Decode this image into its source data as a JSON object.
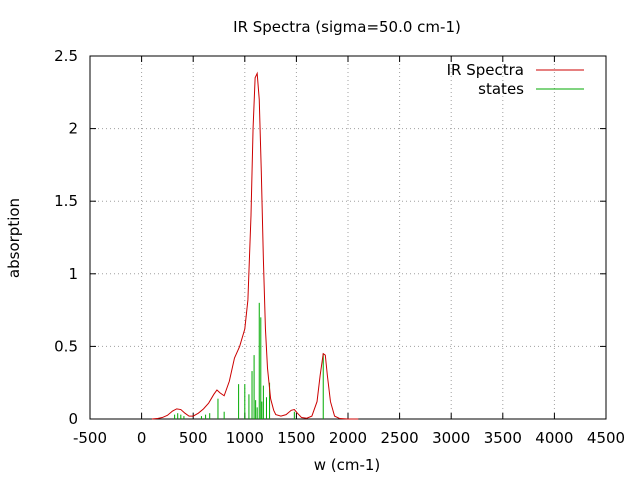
{
  "chart_data": {
    "type": "line",
    "title": "IR Spectra (sigma=50.0 cm-1)",
    "xlabel": "w (cm-1)",
    "ylabel": "absorption",
    "xlim": [
      -500,
      4500
    ],
    "ylim": [
      0,
      2.5
    ],
    "x_ticks": [
      -500,
      0,
      500,
      1000,
      1500,
      2000,
      2500,
      3000,
      3500,
      4000,
      4500
    ],
    "x_tick_labels": [
      "-500",
      "0",
      "500",
      "1000",
      "1500",
      "2000",
      "2500",
      "3000",
      "3500",
      "4000",
      "4500"
    ],
    "y_ticks": [
      0,
      0.5,
      1,
      1.5,
      2,
      2.5
    ],
    "y_tick_labels": [
      "0",
      "0.5",
      "1",
      "1.5",
      "2",
      "2.5"
    ],
    "grid": true,
    "legend_position": "top-right",
    "series": [
      {
        "name": "IR Spectra",
        "color": "#cc0000",
        "kind": "line",
        "x": [
          100,
          150,
          200,
          250,
          300,
          340,
          380,
          420,
          460,
          500,
          550,
          600,
          650,
          700,
          730,
          760,
          800,
          850,
          900,
          950,
          1000,
          1030,
          1060,
          1080,
          1100,
          1120,
          1140,
          1160,
          1180,
          1200,
          1220,
          1250,
          1280,
          1300,
          1350,
          1400,
          1450,
          1480,
          1510,
          1550,
          1600,
          1650,
          1700,
          1730,
          1760,
          1780,
          1800,
          1830,
          1870,
          1920,
          2000,
          2100
        ],
        "y": [
          0.0,
          0.003,
          0.01,
          0.025,
          0.055,
          0.07,
          0.065,
          0.04,
          0.02,
          0.02,
          0.04,
          0.07,
          0.11,
          0.17,
          0.2,
          0.18,
          0.16,
          0.26,
          0.42,
          0.5,
          0.62,
          0.82,
          1.4,
          2.0,
          2.35,
          2.38,
          2.2,
          1.7,
          1.1,
          0.62,
          0.35,
          0.14,
          0.06,
          0.03,
          0.02,
          0.03,
          0.06,
          0.065,
          0.04,
          0.01,
          0.005,
          0.02,
          0.12,
          0.3,
          0.45,
          0.44,
          0.3,
          0.12,
          0.02,
          0.003,
          0.0,
          0.0
        ]
      },
      {
        "name": "states",
        "color": "#00aa00",
        "kind": "sticks",
        "x": [
          320,
          350,
          380,
          410,
          580,
          620,
          660,
          740,
          800,
          940,
          1000,
          1040,
          1070,
          1090,
          1105,
          1120,
          1140,
          1155,
          1165,
          1180,
          1210,
          1240,
          1480,
          1760
        ],
        "y": [
          0.03,
          0.04,
          0.03,
          0.02,
          0.02,
          0.03,
          0.04,
          0.14,
          0.05,
          0.24,
          0.24,
          0.17,
          0.33,
          0.44,
          0.13,
          0.08,
          0.8,
          0.7,
          0.12,
          0.23,
          0.15,
          0.25,
          0.05,
          0.45
        ]
      }
    ]
  }
}
